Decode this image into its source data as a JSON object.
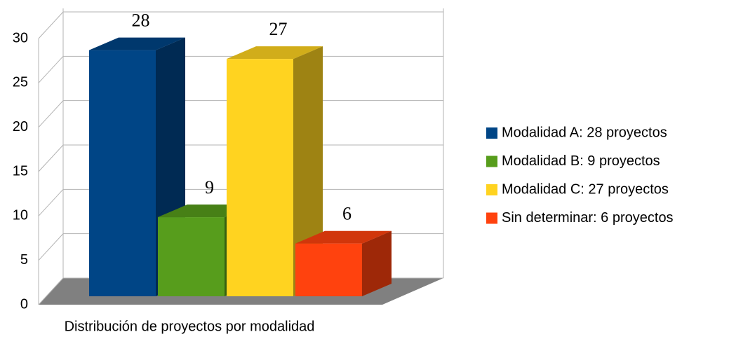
{
  "chart_data": {
    "type": "bar3d",
    "xlabel": "Distribución de proyectos por modalidad",
    "categories": [
      null
    ],
    "series": [
      {
        "name": "Modalidad A: 28 proyectos",
        "color": "#004586",
        "values": [
          28
        ]
      },
      {
        "name": "Modalidad B: 9 proyectos",
        "color": "#579d1c",
        "values": [
          9
        ]
      },
      {
        "name": "Modalidad C: 27 proyectos",
        "color": "#ffd320",
        "values": [
          27
        ]
      },
      {
        "name": "Sin determinar: 6 proyectos",
        "color": "#ff420e",
        "values": [
          6
        ]
      }
    ],
    "ylim": [
      0,
      30
    ],
    "yticks": [
      0,
      5,
      10,
      15,
      20,
      25,
      30
    ],
    "grid": true,
    "legend": "right"
  }
}
